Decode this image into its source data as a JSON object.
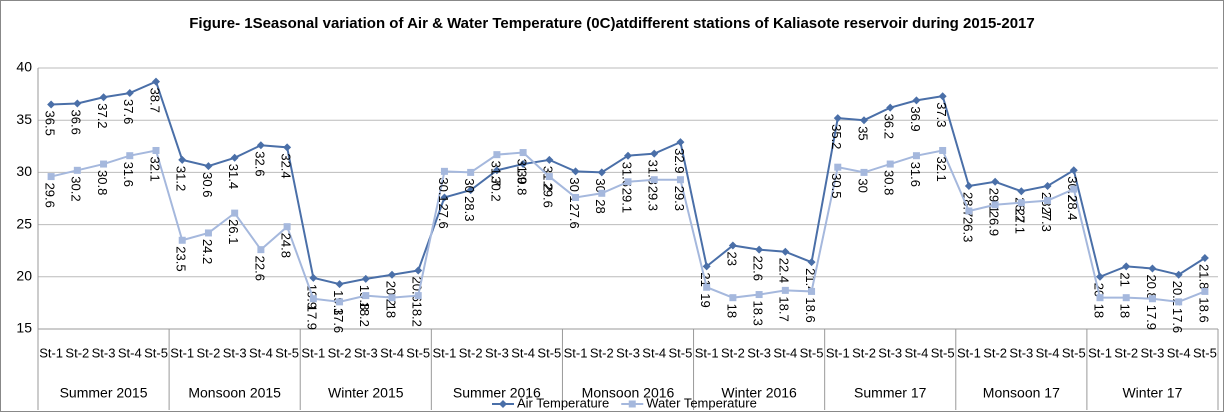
{
  "chart_data": {
    "type": "line",
    "title": "Figure- 1Seasonal variation of Air & Water Temperature   (0C)atdifferent stations of Kaliasote reservoir during 2015-2017",
    "categories": [
      "St-1",
      "St-2",
      "St-3",
      "St-4",
      "St-5",
      "St-1",
      "St-2",
      "St-3",
      "St-4",
      "St-5",
      "St-1",
      "St-2",
      "St-3",
      "St-4",
      "St-5",
      "St-1",
      "St-2",
      "St-3",
      "St-4",
      "St-5",
      "St-1",
      "St-2",
      "St-3",
      "St-4",
      "St-5",
      "St-1",
      "St-2",
      "St-3",
      "St-4",
      "St-5",
      "St-1",
      "St-2",
      "St-3",
      "St-4",
      "St-5",
      "St-1",
      "St-2",
      "St-3",
      "St-4",
      "St-5",
      "St-1",
      "St-2",
      "St-3",
      "St-4",
      "St-5"
    ],
    "groups": [
      "Summer 2015",
      "Monsoon 2015",
      "Winter 2015",
      "Summer 2016",
      "Monsoon 2016",
      "Winter 2016",
      "Summer 17",
      "Monsoon 17",
      "Winter 17"
    ],
    "series": [
      {
        "name": "Air Temperature",
        "color": "#4a6fa8",
        "marker": "diamond",
        "values": [
          36.5,
          36.6,
          37.2,
          37.6,
          38.7,
          31.2,
          30.6,
          31.4,
          32.6,
          32.4,
          19.9,
          19.3,
          19.8,
          20.2,
          20.6,
          27.6,
          28.3,
          30.2,
          30.8,
          31.2,
          30.1,
          30.0,
          31.6,
          31.8,
          32.9,
          21,
          23,
          22.6,
          22.4,
          21.4,
          35.2,
          35,
          36.2,
          36.9,
          37.3,
          28.7,
          29.1,
          28.2,
          28.7,
          30.2,
          20,
          21,
          20.8,
          20.2,
          21.8
        ]
      },
      {
        "name": "Water Temperature",
        "color": "#a5b8dd",
        "marker": "square",
        "values": [
          29.6,
          30.2,
          30.8,
          31.6,
          32.1,
          23.5,
          24.2,
          26.1,
          22.6,
          24.8,
          17.9,
          17.6,
          18.2,
          18.0,
          18.2,
          30.1,
          30,
          31.7,
          31.9,
          29.6,
          27.6,
          28,
          29.1,
          29.3,
          29.3,
          19,
          18,
          18.3,
          18.7,
          18.6,
          30.5,
          30,
          30.8,
          31.6,
          32.1,
          26.3,
          26.9,
          27.1,
          27.3,
          28.4,
          18,
          18,
          17.9,
          17.6,
          18.6
        ]
      }
    ],
    "ylim": [
      15,
      40
    ],
    "yticks": [
      15,
      20,
      25,
      30,
      35,
      40
    ],
    "grid": true,
    "legend": "bottom"
  }
}
